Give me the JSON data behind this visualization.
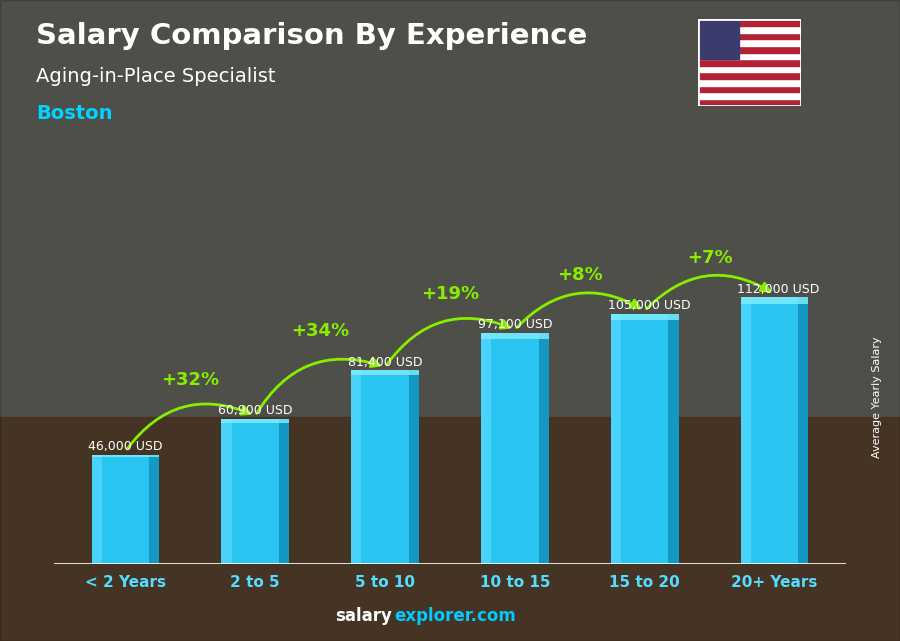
{
  "categories": [
    "< 2 Years",
    "2 to 5",
    "5 to 10",
    "10 to 15",
    "15 to 20",
    "20+ Years"
  ],
  "values": [
    46000,
    60900,
    81400,
    97100,
    105000,
    112000
  ],
  "value_labels": [
    "46,000 USD",
    "60,900 USD",
    "81,400 USD",
    "97,100 USD",
    "105,000 USD",
    "112,000 USD"
  ],
  "pct_changes": [
    "+32%",
    "+34%",
    "+19%",
    "+8%",
    "+7%"
  ],
  "bar_color_main": "#29c5f0",
  "bar_color_left": "#55d8ff",
  "bar_color_right": "#1090bb",
  "bar_color_top": "#80eeff",
  "title": "Salary Comparison By Experience",
  "subtitle1": "Aging-in-Place Specialist",
  "subtitle2": "Boston",
  "ylabel_text": "Average Yearly Salary",
  "footer_salary": "salary",
  "footer_explorer": "explorer.com",
  "bg_top": "#8a8a8a",
  "bg_bottom": "#5a4535",
  "title_color": "#ffffff",
  "subtitle1_color": "#ffffff",
  "subtitle2_color": "#00d4ff",
  "pct_color": "#88ee00",
  "value_color": "#ffffff",
  "xtick_color": "#55ddff",
  "footer_salary_color": "#ffffff",
  "footer_explorer_color": "#00ccff",
  "ylabel_color": "#ffffff",
  "ylim_max": 140000,
  "bar_width": 0.52,
  "flag_stripes": [
    "#B22234",
    "#FFFFFF",
    "#B22234",
    "#FFFFFF",
    "#B22234",
    "#FFFFFF",
    "#B22234",
    "#FFFFFF",
    "#B22234",
    "#FFFFFF",
    "#B22234",
    "#FFFFFF",
    "#B22234"
  ],
  "flag_canton": "#3C3B6E"
}
